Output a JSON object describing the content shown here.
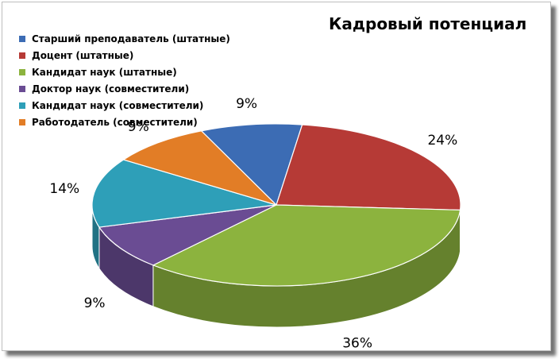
{
  "chart_data": {
    "type": "pie",
    "title": "Кадровый потенциал",
    "legend_position": "top-left",
    "slices": [
      {
        "name": "Старший преподаватель (штатные)",
        "value": 9,
        "label": "9%",
        "color": "#3c6cb4"
      },
      {
        "name": "Доцент (штатные)",
        "value": 24,
        "label": "24%",
        "color": "#b63a36"
      },
      {
        "name": "Кандидат наук (штатные)",
        "value": 36,
        "label": "36%",
        "color": "#8cb33e"
      },
      {
        "name": "Доктор наук (совместители)",
        "value": 9,
        "label": "9%",
        "color": "#6a4c93"
      },
      {
        "name": "Кандидат наук (совместители)",
        "value": 14,
        "label": "14%",
        "color": "#2e9fb8"
      },
      {
        "name": "Работодатель (совместители)",
        "value": 9,
        "label": "9%",
        "color": "#e27d26"
      }
    ]
  }
}
